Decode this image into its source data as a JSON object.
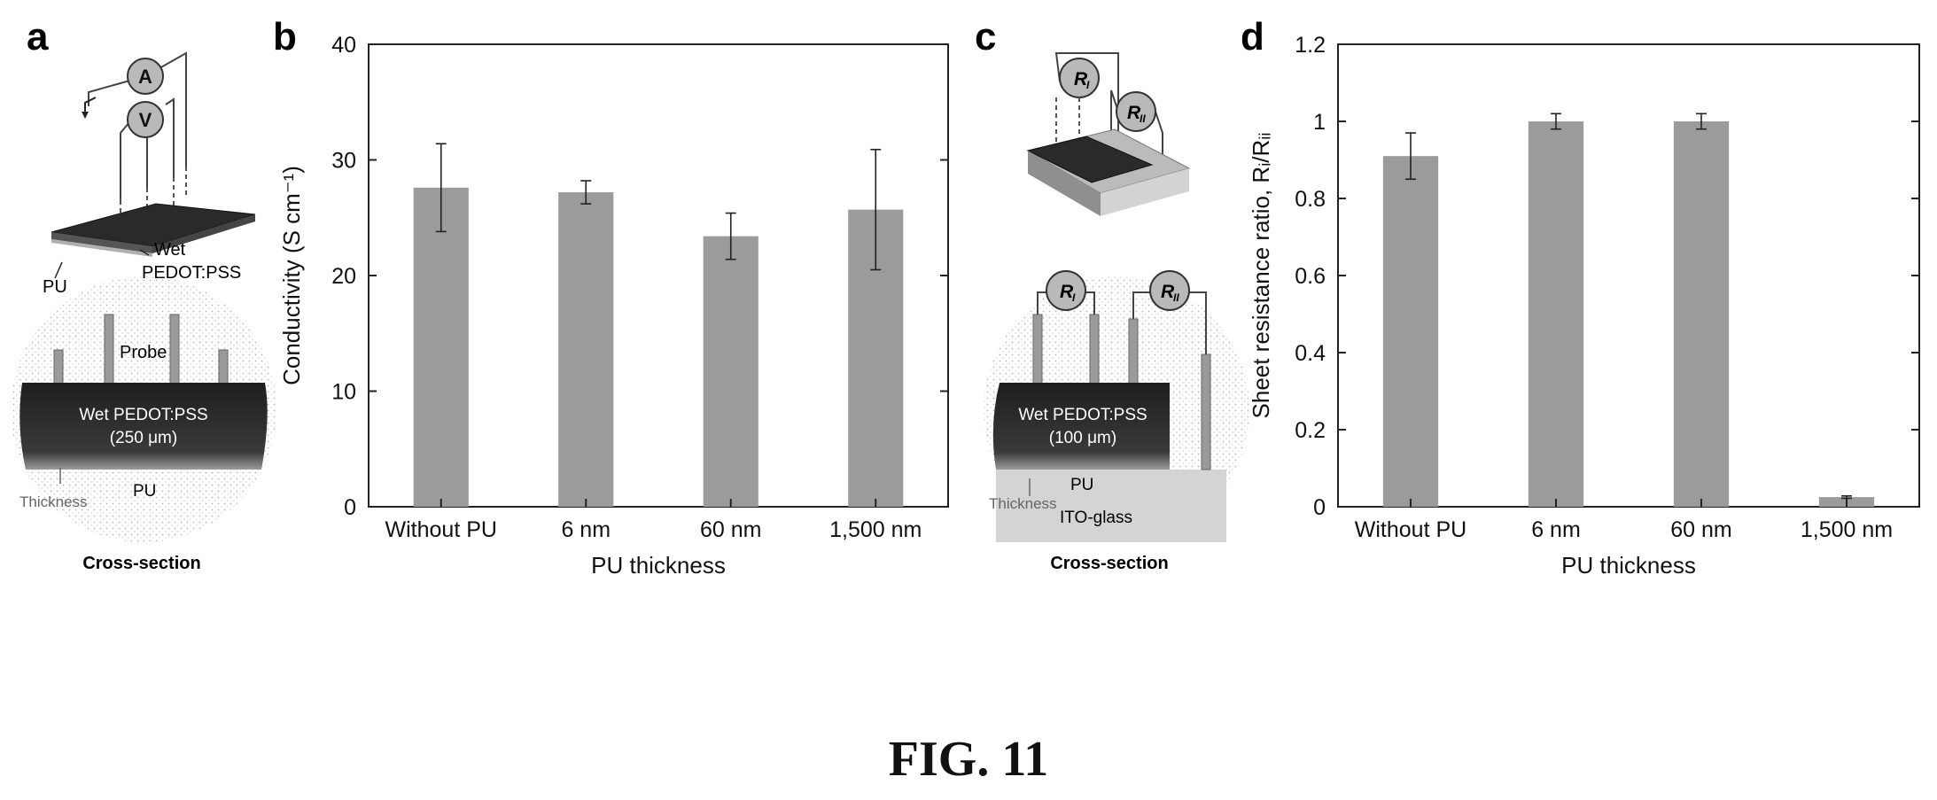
{
  "figure_caption": "FIG. 11",
  "panel_a": {
    "letter": "a",
    "meter_current": "A",
    "meter_voltage": "V",
    "label_wet": "Wet",
    "label_pedot": "PEDOT:PSS",
    "label_pu": "PU",
    "label_probe": "Probe",
    "label_layer": "Wet PEDOT:PSS",
    "label_layer_thickness": "(250 μm)",
    "label_section_pu": "PU",
    "label_thickness": "Thickness",
    "label_cross_section": "Cross-section"
  },
  "panel_c": {
    "letter": "c",
    "resistor_i": "R",
    "resistor_i_sub": "I",
    "resistor_ii": "R",
    "resistor_ii_sub": "II",
    "label_layer": "Wet PEDOT:PSS",
    "label_layer_thickness": "(100 μm)",
    "label_section_pu": "PU",
    "label_ito": "ITO-glass",
    "label_thickness": "Thickness",
    "label_cross_section": "Cross-section"
  },
  "colors": {
    "bar": "#9b9b9b",
    "axis": "#222222",
    "film": "#2a2a2a",
    "stipple": "#bcbcbc"
  },
  "chart_data": [
    {
      "panel": "b",
      "type": "bar",
      "categories": [
        "Without PU",
        "6 nm",
        "60 nm",
        "1,500 nm"
      ],
      "values": [
        27.6,
        27.2,
        23.4,
        25.7
      ],
      "errors": [
        3.8,
        1.0,
        2.0,
        5.2
      ],
      "xlabel": "PU thickness",
      "ylabel": "Conductivity (S cm⁻¹)",
      "ylim": [
        0,
        40
      ],
      "yticks": [
        0,
        10,
        20,
        30,
        40
      ],
      "ytick_labels": [
        "0",
        "10",
        "20",
        "30",
        "40"
      ],
      "grid": false
    },
    {
      "panel": "d",
      "type": "bar",
      "categories": [
        "Without PU",
        "6 nm",
        "60 nm",
        "1,500 nm"
      ],
      "values": [
        0.91,
        1.0,
        1.0,
        0.025
      ],
      "errors": [
        0.06,
        0.02,
        0.02,
        0.003
      ],
      "xlabel": "PU thickness",
      "ylabel": "Sheet resistance ratio, Rᵢ/Rᵢᵢ",
      "ylim": [
        0,
        1.2
      ],
      "yticks": [
        0,
        0.2,
        0.4,
        0.6,
        0.8,
        1.0,
        1.2
      ],
      "ytick_labels": [
        "0",
        "0.2",
        "0.4",
        "0.6",
        "0.8",
        "1",
        "1.2"
      ],
      "grid": false
    }
  ]
}
